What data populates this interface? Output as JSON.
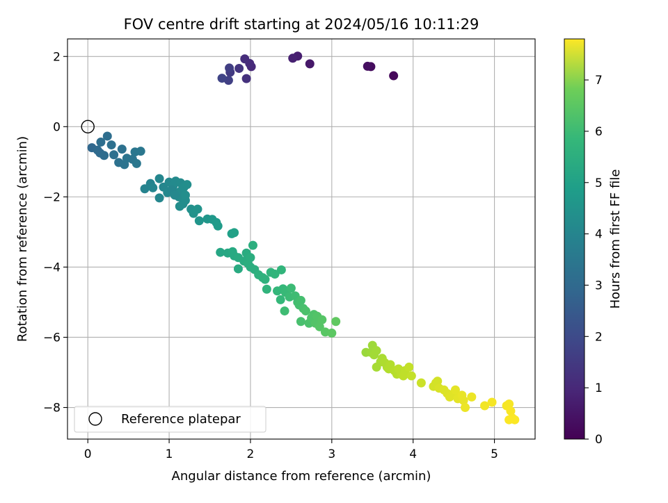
{
  "chart_data": {
    "type": "scatter",
    "title": "FOV centre drift starting at 2024/05/16 10:11:29",
    "xlabel": "Angular distance from reference (arcmin)",
    "ylabel": "Rotation from reference (arcmin)",
    "xlim": [
      -0.25,
      5.5
    ],
    "ylim": [
      -8.9,
      2.5
    ],
    "xticks": [
      0,
      1,
      2,
      3,
      4,
      5
    ],
    "yticks": [
      -8,
      -6,
      -4,
      -2,
      0,
      2
    ],
    "grid": true,
    "legend": {
      "position": "lower-left",
      "entries": [
        "Reference platepar"
      ]
    },
    "reference_point": {
      "x": 0,
      "y": 0
    },
    "colorbar": {
      "label": "Hours from first FF file",
      "range": [
        0,
        7.8
      ],
      "ticks": [
        0,
        1,
        2,
        3,
        4,
        5,
        6,
        7
      ],
      "colormap": "viridis"
    },
    "points": [
      [
        3.76,
        1.45,
        0.15
      ],
      [
        3.48,
        1.71,
        0.25
      ],
      [
        3.44,
        1.72,
        0.3
      ],
      [
        2.73,
        1.79,
        0.5
      ],
      [
        2.58,
        2.01,
        0.65
      ],
      [
        2.52,
        1.95,
        0.7
      ],
      [
        2.01,
        1.71,
        0.9
      ],
      [
        1.99,
        1.8,
        0.95
      ],
      [
        1.93,
        1.93,
        1.0
      ],
      [
        1.95,
        1.37,
        1.1
      ],
      [
        1.86,
        1.66,
        1.2
      ],
      [
        1.75,
        1.55,
        1.35
      ],
      [
        1.74,
        1.67,
        1.45
      ],
      [
        1.73,
        1.32,
        1.5
      ],
      [
        1.65,
        1.38,
        1.6
      ],
      [
        0.05,
        -0.6,
        2.6
      ],
      [
        0.12,
        -0.67,
        2.7
      ],
      [
        0.15,
        -0.75,
        2.7
      ],
      [
        0.2,
        -0.82,
        2.75
      ],
      [
        0.16,
        -0.44,
        2.8
      ],
      [
        0.24,
        -0.27,
        2.8
      ],
      [
        0.29,
        -0.52,
        2.85
      ],
      [
        0.32,
        -0.8,
        2.85
      ],
      [
        0.38,
        -1.02,
        2.9
      ],
      [
        0.42,
        -0.64,
        2.9
      ],
      [
        0.45,
        -1.08,
        2.95
      ],
      [
        0.48,
        -0.9,
        3.0
      ],
      [
        0.55,
        -0.93,
        3.0
      ],
      [
        0.58,
        -0.72,
        3.05
      ],
      [
        0.6,
        -1.05,
        3.1
      ],
      [
        0.65,
        -0.7,
        3.1
      ],
      [
        0.7,
        -1.77,
        3.5
      ],
      [
        0.77,
        -1.62,
        3.5
      ],
      [
        0.8,
        -1.74,
        3.55
      ],
      [
        0.88,
        -2.03,
        3.6
      ],
      [
        0.88,
        -1.48,
        3.6
      ],
      [
        0.93,
        -1.72,
        3.6
      ],
      [
        0.98,
        -1.88,
        3.65
      ],
      [
        1.0,
        -1.58,
        3.65
      ],
      [
        1.05,
        -1.68,
        3.7
      ],
      [
        1.08,
        -1.55,
        3.7
      ],
      [
        1.1,
        -1.88,
        3.7
      ],
      [
        1.12,
        -2.0,
        3.75
      ],
      [
        1.14,
        -1.6,
        3.75
      ],
      [
        1.15,
        -1.82,
        3.75
      ],
      [
        1.17,
        -2.2,
        3.8
      ],
      [
        1.18,
        -1.73,
        3.8
      ],
      [
        1.2,
        -2.1,
        3.8
      ],
      [
        1.2,
        -1.95,
        3.85
      ],
      [
        1.22,
        -1.65,
        3.85
      ],
      [
        1.03,
        -1.8,
        3.6
      ],
      [
        1.07,
        -1.95,
        3.65
      ],
      [
        1.13,
        -2.27,
        3.8
      ],
      [
        1.27,
        -2.35,
        3.9
      ],
      [
        1.3,
        -2.47,
        3.95
      ],
      [
        1.35,
        -2.35,
        4.0
      ],
      [
        1.37,
        -2.68,
        4.05
      ],
      [
        1.47,
        -2.63,
        4.1
      ],
      [
        1.53,
        -2.64,
        4.15
      ],
      [
        1.58,
        -2.73,
        4.2
      ],
      [
        1.6,
        -2.83,
        4.25
      ],
      [
        1.77,
        -3.05,
        4.4
      ],
      [
        1.8,
        -3.02,
        4.45
      ],
      [
        1.63,
        -3.58,
        4.6
      ],
      [
        1.72,
        -3.6,
        4.65
      ],
      [
        1.78,
        -3.56,
        4.7
      ],
      [
        1.8,
        -3.68,
        4.7
      ],
      [
        1.85,
        -3.73,
        4.75
      ],
      [
        1.85,
        -4.05,
        4.75
      ],
      [
        1.92,
        -3.83,
        4.8
      ],
      [
        1.95,
        -3.6,
        4.8
      ],
      [
        1.97,
        -3.9,
        4.85
      ],
      [
        2.0,
        -4.0,
        4.85
      ],
      [
        2.0,
        -3.73,
        4.85
      ],
      [
        2.03,
        -3.38,
        4.9
      ],
      [
        2.05,
        -4.07,
        4.9
      ],
      [
        2.1,
        -4.22,
        4.95
      ],
      [
        2.15,
        -4.3,
        5.0
      ],
      [
        2.18,
        -4.35,
        5.0
      ],
      [
        2.2,
        -4.63,
        5.05
      ],
      [
        2.25,
        -4.15,
        5.05
      ],
      [
        2.3,
        -4.2,
        5.1
      ],
      [
        2.38,
        -4.08,
        5.1
      ],
      [
        2.33,
        -4.68,
        5.15
      ],
      [
        2.37,
        -4.93,
        5.2
      ],
      [
        2.4,
        -4.62,
        5.2
      ],
      [
        2.43,
        -4.72,
        5.25
      ],
      [
        2.48,
        -4.85,
        5.3
      ],
      [
        2.5,
        -4.6,
        5.3
      ],
      [
        2.42,
        -5.25,
        5.35
      ],
      [
        2.55,
        -4.82,
        5.35
      ],
      [
        2.58,
        -5.0,
        5.4
      ],
      [
        2.6,
        -5.08,
        5.45
      ],
      [
        2.62,
        -4.95,
        5.45
      ],
      [
        2.62,
        -5.55,
        5.5
      ],
      [
        2.65,
        -5.18,
        5.5
      ],
      [
        2.68,
        -5.25,
        5.55
      ],
      [
        2.72,
        -5.6,
        5.55
      ],
      [
        2.75,
        -5.45,
        5.6
      ],
      [
        2.78,
        -5.35,
        5.6
      ],
      [
        2.8,
        -5.6,
        5.65
      ],
      [
        2.82,
        -5.4,
        5.65
      ],
      [
        2.85,
        -5.7,
        5.7
      ],
      [
        2.88,
        -5.5,
        5.7
      ],
      [
        2.92,
        -5.85,
        5.75
      ],
      [
        3.0,
        -5.88,
        5.8
      ],
      [
        3.05,
        -5.55,
        5.85
      ],
      [
        3.42,
        -6.43,
        6.6
      ],
      [
        3.48,
        -6.43,
        6.65
      ],
      [
        3.5,
        -6.23,
        6.65
      ],
      [
        3.52,
        -6.5,
        6.7
      ],
      [
        3.55,
        -6.38,
        6.7
      ],
      [
        3.55,
        -6.85,
        6.75
      ],
      [
        3.6,
        -6.7,
        6.75
      ],
      [
        3.62,
        -6.6,
        6.8
      ],
      [
        3.65,
        -6.72,
        6.85
      ],
      [
        3.68,
        -6.85,
        6.85
      ],
      [
        3.7,
        -6.9,
        6.9
      ],
      [
        3.72,
        -6.78,
        6.9
      ],
      [
        3.77,
        -6.95,
        6.95
      ],
      [
        3.8,
        -7.05,
        6.95
      ],
      [
        3.82,
        -6.9,
        7.0
      ],
      [
        3.85,
        -7.05,
        7.0
      ],
      [
        3.88,
        -7.1,
        7.05
      ],
      [
        3.9,
        -6.95,
        7.05
      ],
      [
        3.95,
        -6.85,
        7.1
      ],
      [
        3.98,
        -7.1,
        7.1
      ],
      [
        4.1,
        -7.3,
        7.2
      ],
      [
        4.25,
        -7.4,
        7.3
      ],
      [
        4.28,
        -7.3,
        7.3
      ],
      [
        4.3,
        -7.25,
        7.3
      ],
      [
        4.32,
        -7.45,
        7.35
      ],
      [
        4.38,
        -7.5,
        7.4
      ],
      [
        4.42,
        -7.6,
        7.4
      ],
      [
        4.45,
        -7.7,
        7.45
      ],
      [
        4.5,
        -7.6,
        7.45
      ],
      [
        4.52,
        -7.5,
        7.5
      ],
      [
        4.55,
        -7.75,
        7.5
      ],
      [
        4.6,
        -7.65,
        7.55
      ],
      [
        4.62,
        -7.8,
        7.55
      ],
      [
        4.64,
        -8.0,
        7.6
      ],
      [
        4.72,
        -7.7,
        7.6
      ],
      [
        4.88,
        -7.95,
        7.65
      ],
      [
        4.97,
        -7.85,
        7.7
      ],
      [
        5.15,
        -7.95,
        7.7
      ],
      [
        5.18,
        -7.9,
        7.72
      ],
      [
        5.2,
        -8.1,
        7.75
      ],
      [
        5.22,
        -8.3,
        7.75
      ],
      [
        5.25,
        -8.35,
        7.78
      ],
      [
        5.18,
        -8.35,
        7.78
      ]
    ]
  }
}
